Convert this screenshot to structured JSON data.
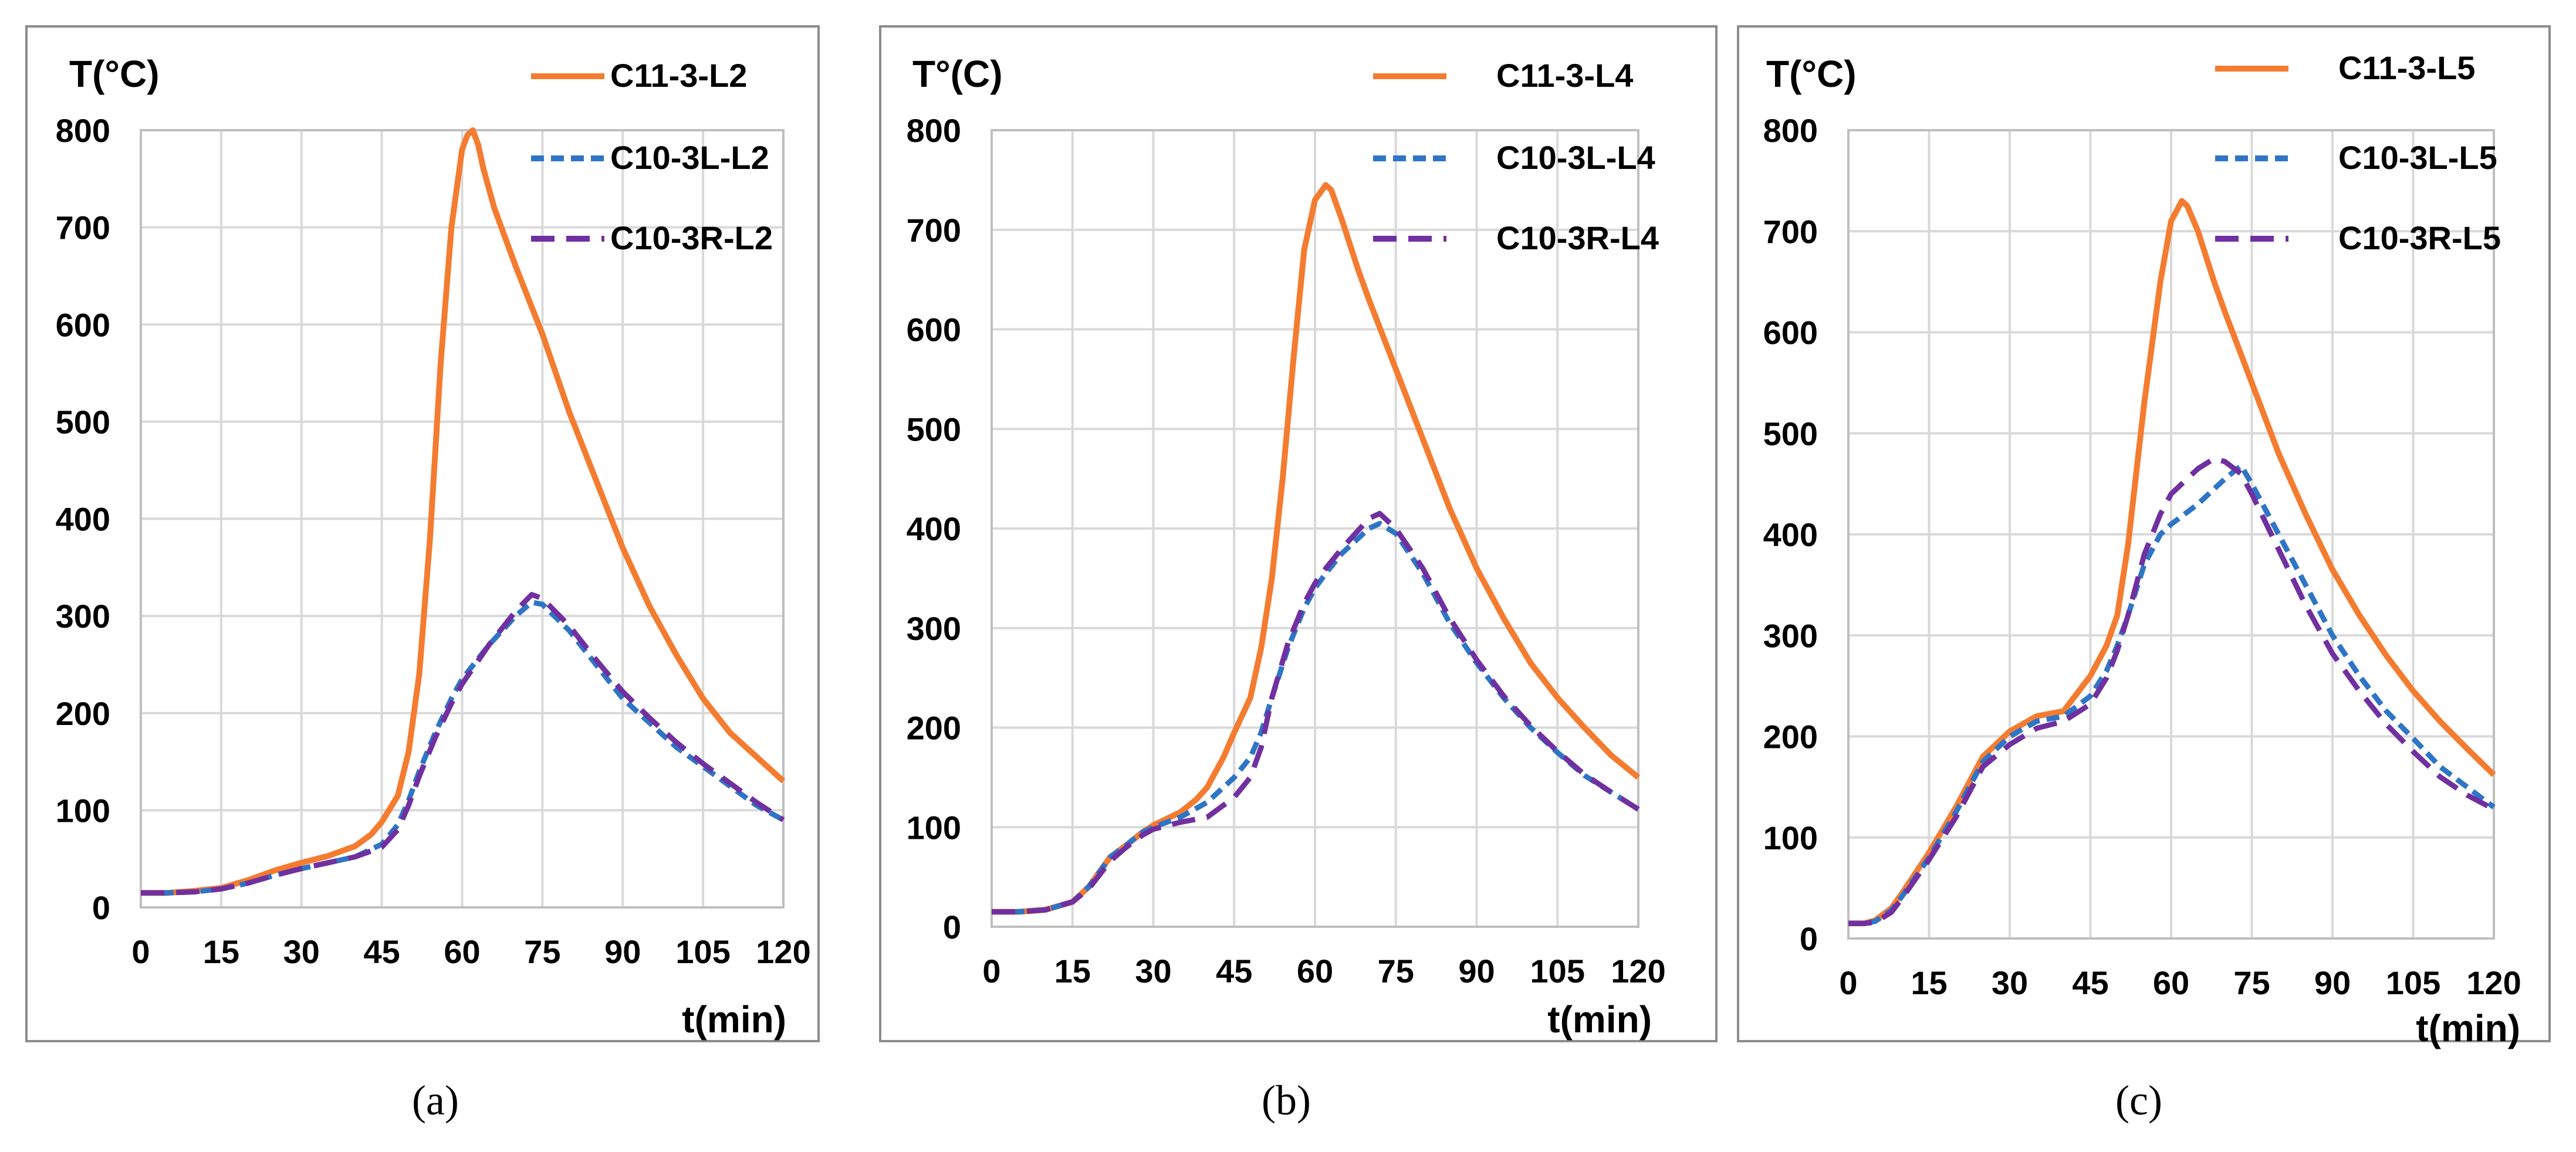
{
  "chart_data": [
    {
      "type": "line",
      "panel": "(a)",
      "ylabel": "T(°C)",
      "xlabel": "t(min)",
      "xlim": [
        0,
        120
      ],
      "ylim": [
        0,
        800
      ],
      "xticks": [
        0,
        15,
        30,
        45,
        60,
        75,
        90,
        105,
        120
      ],
      "yticks": [
        0,
        100,
        200,
        300,
        400,
        500,
        600,
        700,
        800
      ],
      "grid": true,
      "legend_position": "top-right",
      "series": [
        {
          "name": "C11-3-L2",
          "color": "#f47c30",
          "style": "solid",
          "x": [
            0,
            5,
            10,
            15,
            20,
            25,
            30,
            35,
            40,
            43,
            45,
            48,
            50,
            52,
            54,
            56,
            58,
            60,
            61,
            62,
            63,
            64,
            66,
            68,
            70,
            75,
            80,
            85,
            90,
            95,
            100,
            105,
            110,
            115,
            120
          ],
          "y": [
            15,
            15,
            17,
            20,
            28,
            38,
            46,
            53,
            63,
            75,
            88,
            115,
            160,
            240,
            380,
            560,
            700,
            780,
            795,
            800,
            785,
            760,
            720,
            690,
            660,
            590,
            510,
            440,
            370,
            310,
            260,
            215,
            180,
            155,
            130
          ]
        },
        {
          "name": "C10-3L-L2",
          "color": "#2e75c6",
          "style": "dashed",
          "x": [
            0,
            5,
            10,
            15,
            20,
            25,
            30,
            35,
            40,
            45,
            48,
            50,
            52,
            55,
            58,
            60,
            65,
            70,
            73,
            75,
            80,
            85,
            90,
            95,
            100,
            105,
            110,
            115,
            120
          ],
          "y": [
            15,
            15,
            16,
            19,
            25,
            33,
            40,
            46,
            52,
            65,
            85,
            110,
            140,
            180,
            215,
            235,
            270,
            300,
            314,
            312,
            285,
            250,
            215,
            190,
            165,
            145,
            125,
            105,
            90
          ]
        },
        {
          "name": "C10-3R-L2",
          "color": "#7030a0",
          "style": "longdash",
          "x": [
            0,
            5,
            10,
            15,
            20,
            25,
            30,
            35,
            40,
            45,
            48,
            50,
            52,
            55,
            58,
            60,
            65,
            70,
            73,
            75,
            80,
            85,
            90,
            95,
            100,
            105,
            110,
            115,
            120
          ],
          "y": [
            15,
            15,
            16,
            19,
            25,
            33,
            40,
            46,
            52,
            62,
            80,
            105,
            135,
            175,
            210,
            230,
            270,
            305,
            322,
            318,
            290,
            255,
            222,
            195,
            170,
            148,
            128,
            108,
            90
          ]
        }
      ]
    },
    {
      "type": "line",
      "panel": "(b)",
      "ylabel": "T°(C)",
      "xlabel": "t(min)",
      "xlim": [
        0,
        120
      ],
      "ylim": [
        0,
        800
      ],
      "xticks": [
        0,
        15,
        30,
        45,
        60,
        75,
        90,
        105,
        120
      ],
      "yticks": [
        0,
        100,
        200,
        300,
        400,
        500,
        600,
        700,
        800
      ],
      "grid": true,
      "legend_position": "top-right",
      "series": [
        {
          "name": "C11-3-L4",
          "color": "#f47c30",
          "style": "solid",
          "x": [
            0,
            5,
            10,
            15,
            18,
            20,
            22,
            25,
            28,
            30,
            35,
            38,
            40,
            43,
            45,
            48,
            50,
            52,
            54,
            56,
            58,
            60,
            62,
            63,
            65,
            68,
            70,
            75,
            80,
            85,
            90,
            95,
            100,
            105,
            110,
            115,
            120
          ],
          "y": [
            15,
            15,
            17,
            25,
            40,
            55,
            70,
            82,
            95,
            102,
            115,
            128,
            140,
            170,
            195,
            230,
            280,
            350,
            450,
            570,
            680,
            730,
            745,
            740,
            710,
            660,
            630,
            560,
            490,
            420,
            360,
            310,
            265,
            230,
            200,
            172,
            150
          ]
        },
        {
          "name": "C10-3L-L4",
          "color": "#2e75c6",
          "style": "dashed",
          "x": [
            0,
            5,
            10,
            15,
            18,
            20,
            22,
            25,
            28,
            30,
            35,
            40,
            45,
            48,
            50,
            52,
            55,
            58,
            60,
            62,
            65,
            68,
            70,
            72,
            75,
            80,
            85,
            90,
            95,
            100,
            105,
            110,
            115,
            120
          ],
          "y": [
            15,
            15,
            17,
            25,
            40,
            55,
            70,
            82,
            95,
            100,
            110,
            125,
            150,
            170,
            195,
            230,
            280,
            320,
            340,
            355,
            375,
            390,
            400,
            405,
            395,
            355,
            305,
            265,
            230,
            200,
            175,
            152,
            135,
            118
          ]
        },
        {
          "name": "C10-3R-L4",
          "color": "#7030a0",
          "style": "longdash",
          "x": [
            0,
            5,
            10,
            15,
            18,
            20,
            22,
            25,
            28,
            30,
            35,
            40,
            45,
            48,
            50,
            52,
            55,
            58,
            60,
            62,
            65,
            68,
            70,
            72,
            75,
            80,
            85,
            90,
            95,
            100,
            105,
            110,
            115,
            120
          ],
          "y": [
            15,
            15,
            17,
            25,
            38,
            52,
            66,
            80,
            92,
            98,
            105,
            110,
            130,
            150,
            180,
            230,
            285,
            325,
            345,
            360,
            380,
            398,
            410,
            415,
            400,
            360,
            310,
            268,
            232,
            202,
            176,
            153,
            135,
            118
          ]
        }
      ]
    },
    {
      "type": "line",
      "panel": "(c)",
      "ylabel": "T(°C)",
      "xlabel": "t(min)",
      "xlim": [
        0,
        120
      ],
      "ylim": [
        0,
        800
      ],
      "xticks": [
        0,
        15,
        30,
        45,
        60,
        75,
        90,
        105,
        120
      ],
      "yticks": [
        0,
        100,
        200,
        300,
        400,
        500,
        600,
        700,
        800
      ],
      "grid": true,
      "legend_position": "top-right",
      "series": [
        {
          "name": "C11-3-L5",
          "color": "#f47c30",
          "style": "solid",
          "x": [
            0,
            3,
            5,
            8,
            10,
            15,
            20,
            25,
            30,
            35,
            40,
            45,
            48,
            50,
            52,
            55,
            58,
            60,
            62,
            63,
            65,
            68,
            70,
            75,
            80,
            85,
            90,
            95,
            100,
            105,
            110,
            115,
            120
          ],
          "y": [
            15,
            15,
            18,
            30,
            45,
            85,
            130,
            180,
            205,
            220,
            225,
            260,
            290,
            320,
            390,
            530,
            650,
            710,
            730,
            725,
            700,
            650,
            620,
            550,
            480,
            420,
            365,
            320,
            280,
            245,
            215,
            188,
            162
          ]
        },
        {
          "name": "C10-3L-L5",
          "color": "#2e75c6",
          "style": "dashed",
          "x": [
            0,
            3,
            5,
            8,
            10,
            15,
            20,
            25,
            30,
            35,
            40,
            45,
            48,
            50,
            52,
            55,
            58,
            60,
            65,
            70,
            73,
            75,
            80,
            85,
            90,
            95,
            100,
            105,
            110,
            115,
            120
          ],
          "y": [
            15,
            15,
            17,
            28,
            42,
            80,
            125,
            175,
            200,
            215,
            220,
            240,
            265,
            290,
            320,
            370,
            400,
            410,
            430,
            455,
            468,
            450,
            400,
            350,
            300,
            260,
            225,
            198,
            170,
            150,
            130
          ]
        },
        {
          "name": "C10-3R-L5",
          "color": "#7030a0",
          "style": "longdash",
          "x": [
            0,
            3,
            5,
            8,
            10,
            15,
            20,
            25,
            30,
            35,
            40,
            45,
            48,
            50,
            52,
            55,
            58,
            60,
            65,
            68,
            70,
            73,
            75,
            80,
            85,
            90,
            95,
            100,
            105,
            110,
            115,
            120
          ],
          "y": [
            15,
            15,
            16,
            26,
            40,
            78,
            120,
            170,
            192,
            208,
            215,
            232,
            258,
            285,
            320,
            380,
            420,
            440,
            465,
            475,
            472,
            460,
            440,
            385,
            330,
            282,
            245,
            212,
            185,
            160,
            142,
            128
          ]
        }
      ]
    }
  ]
}
